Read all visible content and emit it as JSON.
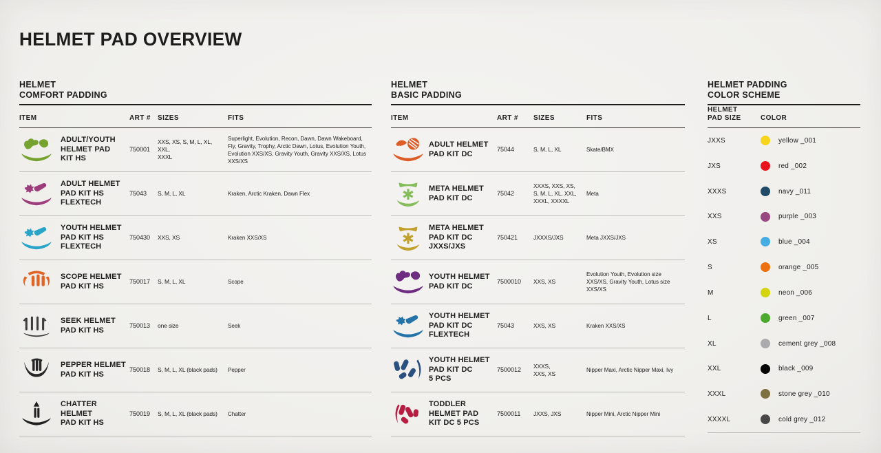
{
  "page": {
    "title": "HELMET PAD OVERVIEW",
    "background": "#f1f0ee",
    "text_color": "#1d1d1b"
  },
  "tables": [
    {
      "heading_lines": [
        "HELMET",
        "COMFORT PADDING"
      ],
      "columns": {
        "item": "ITEM",
        "art": "ART #",
        "sizes": "SIZES",
        "fits": "FITS"
      },
      "rows": [
        {
          "icon": "scatter-pads-icon",
          "icon_color": "#76A32F",
          "name": "ADULT/YOUTH\nHELMET PAD\nKIT HS",
          "art": "750001",
          "sizes": "XXS, XS, S, M, L, XL, XXL,\nXXXL",
          "fits": "Superlight, Evolution, Recon, Dawn, Dawn Wakeboard, Fly, Gravity, Trophy, Arctic Dawn, Lotus, Evolution Youth, Evolution XXS/XS, Gravity Youth, Gravity XXS/XS, Lotus XXS/XS"
        },
        {
          "icon": "flex-pads-icon",
          "icon_color": "#9D3D7C",
          "name": "ADULT HELMET\nPAD KIT HS\nFLEXTECH",
          "art": "75043",
          "sizes": "S, M, L, XL",
          "fits": "Kraken, Arctic Kraken, Dawn Flex"
        },
        {
          "icon": "flex-pads-icon",
          "icon_color": "#2AA5C8",
          "name": "YOUTH HELMET\nPAD KIT HS\nFLEXTECH",
          "art": "750430",
          "sizes": "XXS, XS",
          "fits": "Kraken XXS/XS"
        },
        {
          "icon": "scope-pads-icon",
          "icon_color": "#E06426",
          "name": "SCOPE HELMET\nPAD KIT HS",
          "art": "750017",
          "sizes": "S, M, L, XL",
          "fits": "Scope"
        },
        {
          "icon": "seek-pads-icon",
          "icon_color": "#3C3C3C",
          "name": "SEEK HELMET\nPAD KIT HS",
          "art": "750013",
          "sizes": "one size",
          "fits": "Seek"
        },
        {
          "icon": "pepper-pads-icon",
          "icon_color": "#262626",
          "name": "PEPPER HELMET\nPAD KIT HS",
          "art": "750018",
          "sizes": "S, M, L, XL (black pads)",
          "fits": "Pepper"
        },
        {
          "icon": "chatter-pads-icon",
          "icon_color": "#1F1F1F",
          "name": "CHATTER HELMET\nPAD KIT HS",
          "art": "750019",
          "sizes": "S, M, L, XL (black pads)",
          "fits": "Chatter"
        }
      ]
    },
    {
      "heading_lines": [
        "HELMET",
        "BASIC PADDING"
      ],
      "columns": {
        "item": "ITEM",
        "art": "ART #",
        "sizes": "SIZES",
        "fits": "FITS"
      },
      "rows": [
        {
          "icon": "dc-adult-pads-icon",
          "icon_color": "#DD5B26",
          "name": "ADULT HELMET\nPAD KIT DC",
          "art": "75044",
          "sizes": "S, M, L, XL",
          "fits": "Skate/BMX"
        },
        {
          "icon": "meta-pads-icon",
          "icon_color": "#86BD5B",
          "name": "META HELMET\nPAD KIT DC",
          "art": "75042",
          "sizes": "XXXS, XXS, XS,\nS, M, L, XL, XXL,\nXXXL, XXXXL",
          "fits": "Meta"
        },
        {
          "icon": "meta-pads-icon",
          "icon_color": "#C1A12B",
          "name": "META HELMET\nPAD KIT DC\nJXXS/JXS",
          "art": "750421",
          "sizes": "JXXXS/JXS",
          "fits": "Meta JXXS/JXS"
        },
        {
          "icon": "scatter-pads-icon",
          "icon_color": "#6E2D80",
          "name": "YOUTH HELMET\nPAD KIT DC",
          "art": "7500010",
          "sizes": "XXS, XS",
          "fits": "Evolution Youth, Evolution size XXS/XS, Gravity Youth, Lotus size XXS/XS"
        },
        {
          "icon": "flex-pads-icon",
          "icon_color": "#2473A8",
          "name": "YOUTH HELMET\nPAD KIT DC\nFLEXTECH",
          "art": "75043",
          "sizes": "XXS, XS",
          "fits": "Kraken XXS/XS"
        },
        {
          "icon": "five-pcs-pads-icon",
          "icon_color": "#2A5080",
          "name": "YOUTH HELMET\nPAD KIT DC\n5 PCS",
          "art": "7500012",
          "sizes": "XXXS,\nXXS, XS",
          "fits": "Nipper Maxi, Arctic Nipper Maxi, Ivy"
        },
        {
          "icon": "toddler-pads-icon",
          "icon_color": "#B81C40",
          "name": "TODDLER\nHELMET PAD\nKIT DC 5 PCS",
          "art": "7500011",
          "sizes": "JXXS, JXS",
          "fits": "Nipper Mini, Arctic Nipper Mini"
        }
      ]
    }
  ],
  "color_scheme": {
    "heading_lines": [
      "HELMET PADDING",
      "COLOR SCHEME"
    ],
    "columns": {
      "size": "HELMET\nPAD SIZE",
      "color": "COLOR"
    },
    "rows": [
      {
        "size": "JXXS",
        "swatch": "#F8D41E",
        "label": "yellow _001"
      },
      {
        "size": "JXS",
        "swatch": "#E8131F",
        "label": "red _002"
      },
      {
        "size": "XXXS",
        "swatch": "#204A66",
        "label": "navy _011"
      },
      {
        "size": "XXS",
        "swatch": "#99487F",
        "label": "purple _003"
      },
      {
        "size": "XS",
        "swatch": "#46ADE3",
        "label": "blue _004"
      },
      {
        "size": "S",
        "swatch": "#EE7111",
        "label": "orange _005"
      },
      {
        "size": "M",
        "swatch": "#D4D40F",
        "label": "neon _006"
      },
      {
        "size": "L",
        "swatch": "#4BAA2E",
        "label": "green _007"
      },
      {
        "size": "XL",
        "swatch": "#ABABAD",
        "label": "cement grey _008"
      },
      {
        "size": "XXL",
        "swatch": "#000000",
        "label": "black _009"
      },
      {
        "size": "XXXL",
        "swatch": "#7E7040",
        "label": "stone grey _010"
      },
      {
        "size": "XXXXL",
        "swatch": "#474747",
        "label": "cold grey _012"
      }
    ]
  }
}
